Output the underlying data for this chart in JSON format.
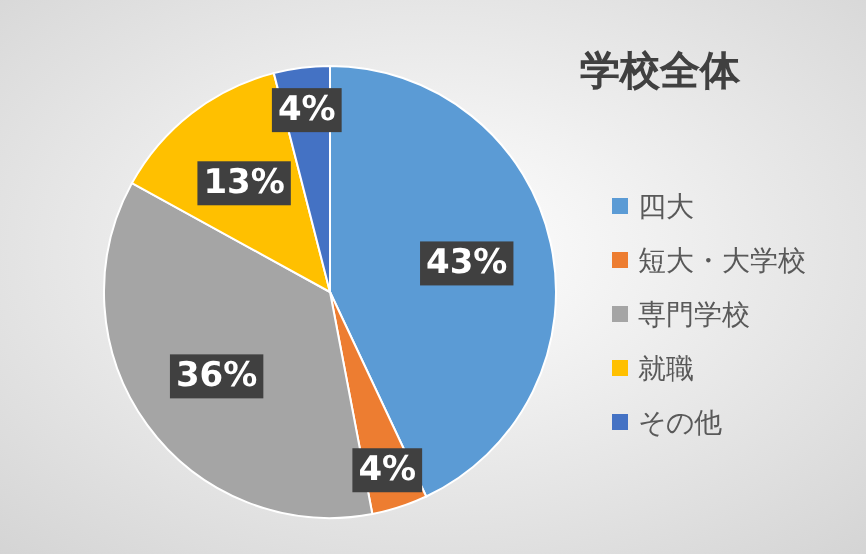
{
  "chart_data": {
    "type": "pie",
    "title": "学校全体",
    "categories": [
      "四大",
      "短大・大学校",
      "専門学校",
      "就職",
      "その他"
    ],
    "values": [
      43,
      4,
      36,
      13,
      4
    ],
    "value_labels": [
      "43%",
      "4%",
      "36%",
      "13%",
      "4%"
    ],
    "colors": [
      "#5b9bd5",
      "#ed7d31",
      "#a5a5a5",
      "#ffc000",
      "#4472c4"
    ],
    "legend": "right"
  }
}
